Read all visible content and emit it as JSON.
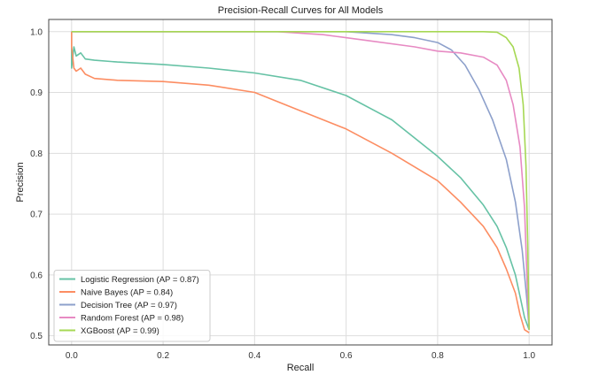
{
  "chart_data": {
    "type": "line",
    "title": "Precision-Recall Curves for All Models",
    "xlabel": "Recall",
    "ylabel": "Precision",
    "xlim": [
      -0.05,
      1.05
    ],
    "ylim": [
      0.485,
      1.02
    ],
    "xticks": [
      0.0,
      0.2,
      0.4,
      0.6,
      0.8,
      1.0
    ],
    "xtick_labels": [
      "0.0",
      "0.2",
      "0.4",
      "0.6",
      "0.8",
      "1.0"
    ],
    "yticks": [
      0.5,
      0.6,
      0.7,
      0.8,
      0.9,
      1.0
    ],
    "ytick_labels": [
      "0.5",
      "0.6",
      "0.7",
      "0.8",
      "0.9",
      "1.0"
    ],
    "grid": true,
    "legend_position": "lower-left",
    "series": [
      {
        "name": "Logistic Regression (AP = 0.87)",
        "color": "#66c2a5",
        "points": [
          [
            0.0,
            1.0
          ],
          [
            0.0,
            0.94
          ],
          [
            0.005,
            0.975
          ],
          [
            0.01,
            0.96
          ],
          [
            0.02,
            0.965
          ],
          [
            0.03,
            0.955
          ],
          [
            0.05,
            0.953
          ],
          [
            0.1,
            0.95
          ],
          [
            0.2,
            0.946
          ],
          [
            0.3,
            0.94
          ],
          [
            0.4,
            0.932
          ],
          [
            0.5,
            0.92
          ],
          [
            0.6,
            0.895
          ],
          [
            0.7,
            0.855
          ],
          [
            0.8,
            0.795
          ],
          [
            0.85,
            0.76
          ],
          [
            0.9,
            0.715
          ],
          [
            0.93,
            0.68
          ],
          [
            0.95,
            0.645
          ],
          [
            0.97,
            0.6
          ],
          [
            0.98,
            0.565
          ],
          [
            0.99,
            0.53
          ],
          [
            1.0,
            0.51
          ]
        ]
      },
      {
        "name": "Naive Bayes (AP = 0.84)",
        "color": "#fc8d62",
        "points": [
          [
            0.0,
            1.0
          ],
          [
            0.0,
            0.975
          ],
          [
            0.005,
            0.94
          ],
          [
            0.01,
            0.935
          ],
          [
            0.02,
            0.94
          ],
          [
            0.03,
            0.93
          ],
          [
            0.05,
            0.923
          ],
          [
            0.1,
            0.92
          ],
          [
            0.2,
            0.918
          ],
          [
            0.3,
            0.912
          ],
          [
            0.4,
            0.9
          ],
          [
            0.5,
            0.87
          ],
          [
            0.6,
            0.84
          ],
          [
            0.7,
            0.8
          ],
          [
            0.8,
            0.755
          ],
          [
            0.85,
            0.72
          ],
          [
            0.9,
            0.68
          ],
          [
            0.93,
            0.645
          ],
          [
            0.95,
            0.61
          ],
          [
            0.97,
            0.57
          ],
          [
            0.98,
            0.535
          ],
          [
            0.99,
            0.51
          ],
          [
            1.0,
            0.505
          ]
        ]
      },
      {
        "name": "Decision Tree (AP = 0.97)",
        "color": "#8da0cb",
        "points": [
          [
            0.0,
            1.0
          ],
          [
            0.6,
            1.0
          ],
          [
            0.7,
            0.995
          ],
          [
            0.75,
            0.99
          ],
          [
            0.8,
            0.982
          ],
          [
            0.83,
            0.97
          ],
          [
            0.86,
            0.945
          ],
          [
            0.89,
            0.905
          ],
          [
            0.92,
            0.855
          ],
          [
            0.95,
            0.79
          ],
          [
            0.97,
            0.72
          ],
          [
            0.985,
            0.64
          ],
          [
            0.995,
            0.56
          ],
          [
            1.0,
            0.51
          ]
        ]
      },
      {
        "name": "Random Forest (AP = 0.98)",
        "color": "#e78ac3",
        "points": [
          [
            0.0,
            1.0
          ],
          [
            0.45,
            1.0
          ],
          [
            0.55,
            0.995
          ],
          [
            0.65,
            0.985
          ],
          [
            0.75,
            0.975
          ],
          [
            0.8,
            0.968
          ],
          [
            0.85,
            0.965
          ],
          [
            0.9,
            0.958
          ],
          [
            0.93,
            0.945
          ],
          [
            0.95,
            0.92
          ],
          [
            0.965,
            0.88
          ],
          [
            0.98,
            0.81
          ],
          [
            0.99,
            0.71
          ],
          [
            0.995,
            0.6
          ],
          [
            1.0,
            0.51
          ]
        ]
      },
      {
        "name": "XGBoost (AP = 0.99)",
        "color": "#a6d854",
        "points": [
          [
            0.0,
            1.0
          ],
          [
            0.9,
            1.0
          ],
          [
            0.93,
            0.999
          ],
          [
            0.95,
            0.99
          ],
          [
            0.965,
            0.975
          ],
          [
            0.978,
            0.94
          ],
          [
            0.987,
            0.88
          ],
          [
            0.993,
            0.78
          ],
          [
            0.997,
            0.65
          ],
          [
            1.0,
            0.51
          ]
        ]
      }
    ]
  }
}
